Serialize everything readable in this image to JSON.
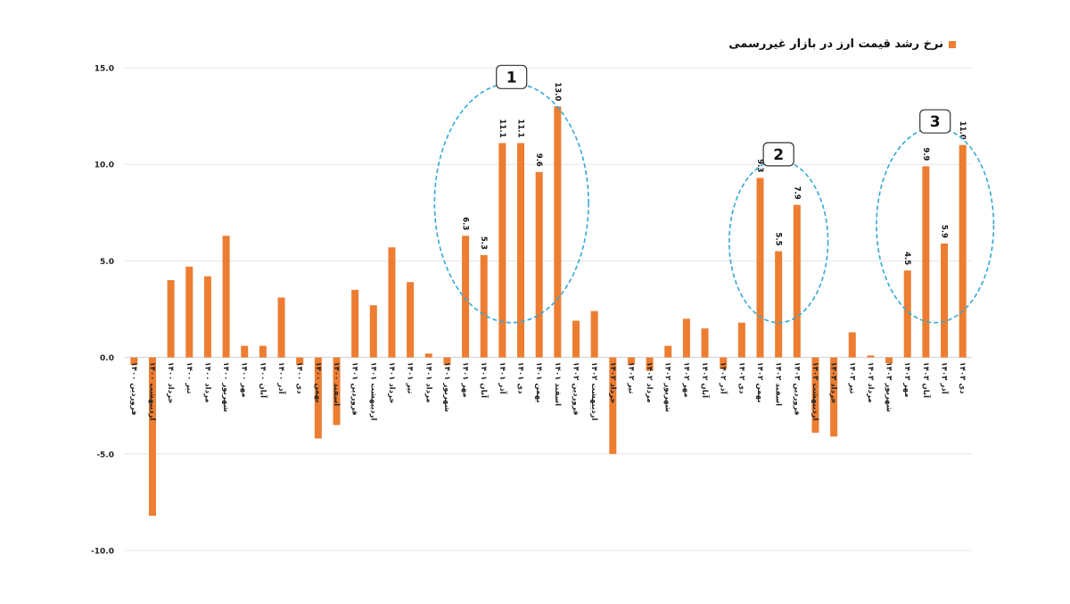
{
  "chart_data": {
    "type": "bar",
    "title": "",
    "xlabel": "",
    "ylabel": "",
    "ylim": [
      -10,
      15
    ],
    "yticks": [
      "15.0",
      "10.0",
      "5.0",
      "0.0",
      "-5.0",
      "-10.0"
    ],
    "ytick_values": [
      15,
      10,
      5,
      0,
      -5,
      -10
    ],
    "grid": true,
    "legend": "top-right",
    "colors": {
      "bar": "#ED7D31",
      "grid": "#e6e6e6",
      "circle": "#35A9D8"
    },
    "categories": [
      "فروردین ۱۴۰۰",
      "اردیبهشت ۱۴۰۰",
      "خرداد ۱۴۰۰",
      "تیر ۱۴۰۰",
      "مرداد ۱۴۰۰",
      "شهریور ۱۴۰۰",
      "مهر ۱۴۰۰",
      "آبان ۱۴۰۰",
      "آذر ۱۴۰۰",
      "دی ۱۴۰۰",
      "بهمن ۱۴۰۰",
      "اسفند ۱۴۰۰",
      "فروردین ۱۴۰۱",
      "اردیبهشت ۱۴۰۱",
      "خرداد ۱۴۰۱",
      "تیر ۱۴۰۱",
      "مرداد ۱۴۰۱",
      "شهریور ۱۴۰۱",
      "مهر ۱۴۰۱",
      "آبان ۱۴۰۱",
      "آذر ۱۴۰۱",
      "دی ۱۴۰۱",
      "بهمن ۱۴۰۱",
      "اسفند ۱۴۰۱",
      "فروردین ۱۴۰۲",
      "اردیبهشت ۱۴۰۲",
      "خرداد ۱۴۰۲",
      "تیر ۱۴۰۲",
      "مرداد ۱۴۰۲",
      "شهریور ۱۴۰۲",
      "مهر ۱۴۰۲",
      "آبان ۱۴۰۲",
      "آذر ۱۴۰۲",
      "دی ۱۴۰۲",
      "بهمن ۱۴۰۲",
      "اسفند ۱۴۰۲",
      "فروردین ۱۴۰۳",
      "اردیبهشت ۱۴۰۳",
      "خرداد ۱۴۰۳",
      "تیر ۱۴۰۳",
      "مرداد ۱۴۰۳",
      "شهریور ۱۴۰۳",
      "مهر ۱۴۰۳",
      "آبان ۱۴۰۳",
      "آذر ۱۴۰۳",
      "دی ۱۴۰۳"
    ],
    "series": [
      {
        "name": "نرخ رشد قیمت ارز در بازار غیررسمی",
        "values": [
          -0.4,
          -8.2,
          4.0,
          4.7,
          4.2,
          6.3,
          0.6,
          0.6,
          3.1,
          -0.4,
          -4.2,
          -3.5,
          3.5,
          2.7,
          5.7,
          3.9,
          0.2,
          -0.4,
          6.3,
          5.3,
          11.1,
          11.1,
          9.6,
          13.0,
          1.9,
          2.4,
          -5.0,
          -0.4,
          -0.7,
          0.6,
          2.0,
          1.5,
          -0.6,
          1.8,
          9.3,
          5.5,
          7.9,
          -3.9,
          -4.1,
          1.3,
          0.1,
          -0.3,
          4.5,
          9.9,
          5.9,
          11.0
        ]
      }
    ],
    "data_labels": [
      {
        "index": 18,
        "text": "6.3"
      },
      {
        "index": 19,
        "text": "5.3"
      },
      {
        "index": 20,
        "text": "11.1"
      },
      {
        "index": 21,
        "text": "11.1"
      },
      {
        "index": 22,
        "text": "9.6"
      },
      {
        "index": 23,
        "text": "13.0"
      },
      {
        "index": 34,
        "text": "9.3"
      },
      {
        "index": 35,
        "text": "5.5"
      },
      {
        "index": 36,
        "text": "7.9"
      },
      {
        "index": 42,
        "text": "4.5"
      },
      {
        "index": 43,
        "text": "9.9"
      },
      {
        "index": 44,
        "text": "5.9"
      },
      {
        "index": 45,
        "text": "11.0"
      }
    ],
    "annotations": [
      {
        "label": "1",
        "first_index": 18,
        "last_index": 23,
        "y_low": 1.8,
        "y_high": 14.2
      },
      {
        "label": "2",
        "first_index": 34,
        "last_index": 36,
        "y_low": 1.8,
        "y_high": 10.2
      },
      {
        "label": "3",
        "first_index": 42,
        "last_index": 45,
        "y_low": 1.8,
        "y_high": 11.9
      }
    ]
  }
}
